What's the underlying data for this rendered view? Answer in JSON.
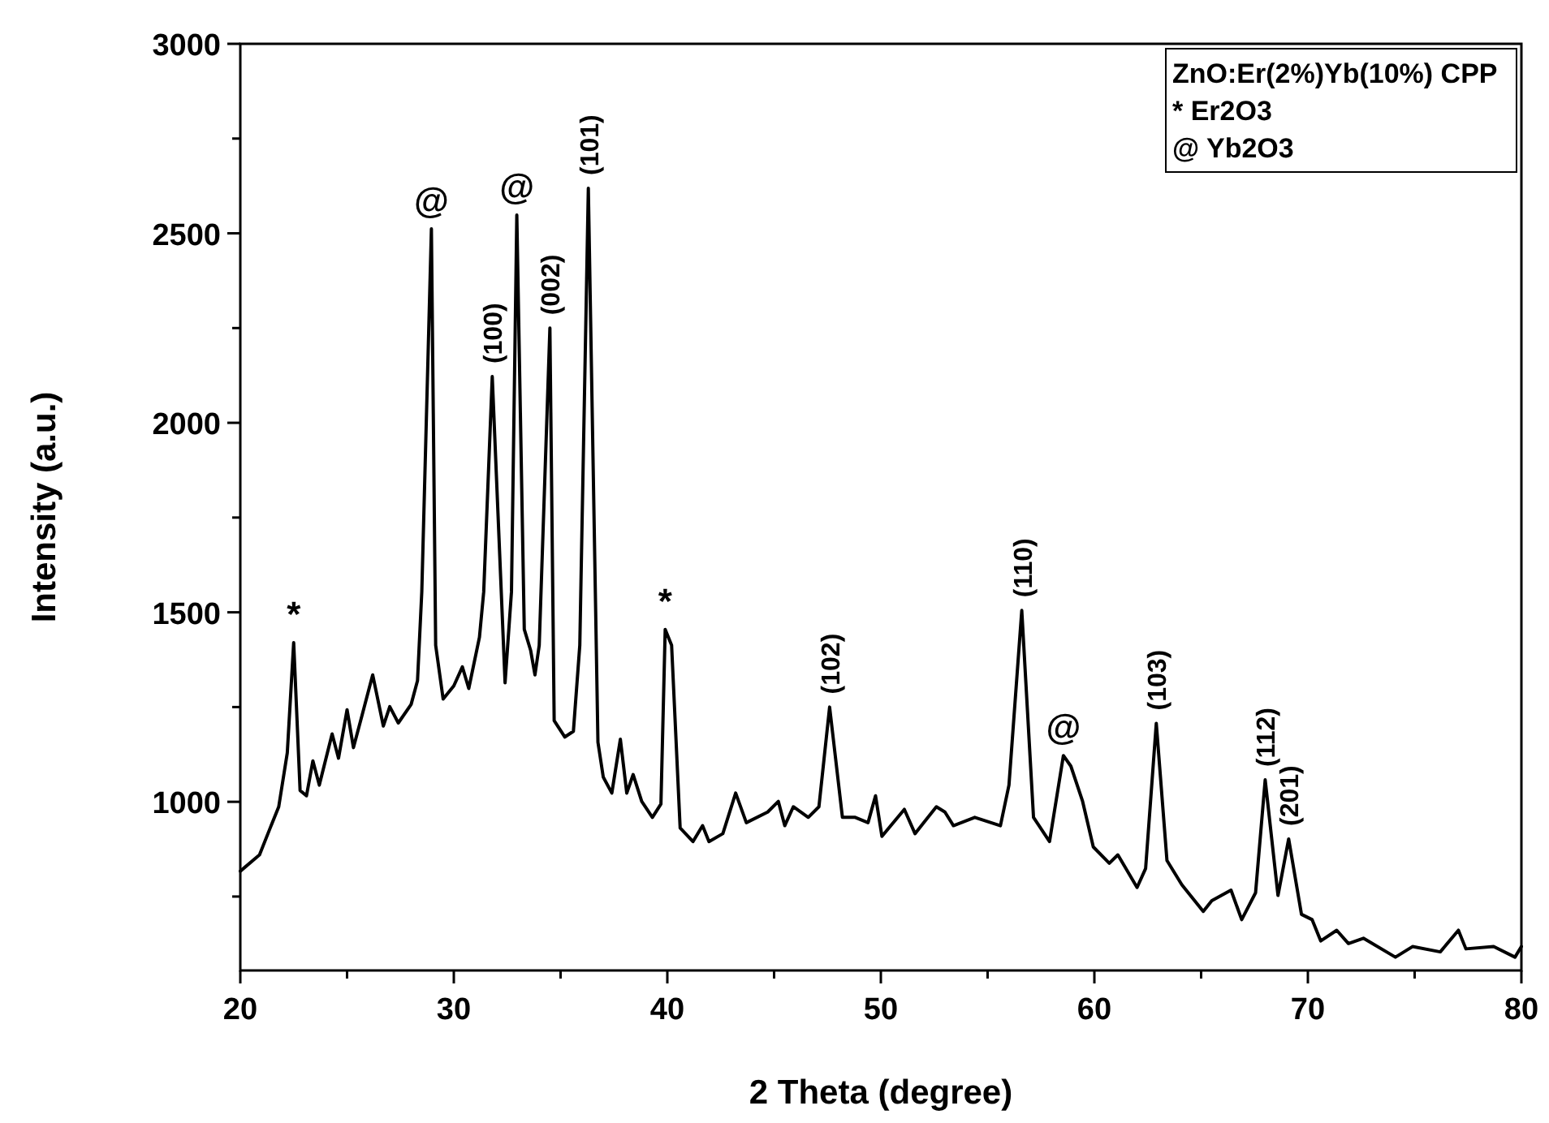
{
  "chart_data": {
    "type": "line",
    "xlabel": "2 Theta (degree)",
    "ylabel": "Intensity (a.u.)",
    "xlim": [
      20,
      80
    ],
    "ylim": [
      555,
      3000
    ],
    "xticks": [
      20,
      {
        "value": 25,
        "label": null
      },
      30,
      {
        "value": 35,
        "label": null
      },
      40,
      {
        "value": 45,
        "label": null
      },
      50,
      {
        "value": 55,
        "label": null
      },
      60,
      {
        "value": 65,
        "label": null
      },
      70,
      {
        "value": 75,
        "label": null
      },
      80
    ],
    "yticks": [
      {
        "value": 750,
        "label": null
      },
      1000,
      {
        "value": 1250,
        "label": null
      },
      1500,
      {
        "value": 1750,
        "label": null
      },
      2000,
      {
        "value": 2250,
        "label": null
      },
      2500,
      {
        "value": 2750,
        "label": null
      },
      3000
    ],
    "grid": false,
    "marker": "none",
    "line_style": "solid",
    "series": [
      {
        "color": "#000000",
        "x": [
          20.0,
          20.9,
          21.4,
          21.8,
          22.2,
          22.5,
          22.8,
          23.1,
          23.4,
          23.7,
          24.3,
          24.6,
          25.0,
          25.3,
          25.7,
          26.2,
          26.7,
          27.0,
          27.4,
          28.0,
          28.3,
          28.5,
          28.95,
          29.15,
          29.5,
          30.0,
          30.4,
          30.7,
          31.2,
          31.4,
          31.8,
          32.4,
          32.7,
          32.95,
          33.3,
          33.6,
          33.8,
          34.0,
          34.5,
          34.7,
          35.2,
          35.6,
          35.9,
          36.3,
          36.75,
          37.0,
          37.4,
          37.8,
          38.1,
          38.4,
          38.8,
          39.3,
          39.7,
          39.9,
          40.2,
          40.6,
          41.2,
          41.65,
          41.95,
          42.6,
          43.2,
          43.7,
          44.7,
          45.2,
          45.5,
          45.9,
          46.6,
          47.1,
          47.6,
          48.2,
          48.8,
          49.4,
          49.75,
          50.05,
          51.1,
          51.6,
          52.6,
          53.0,
          53.4,
          54.4,
          55.6,
          56.0,
          56.6,
          57.15,
          57.9,
          58.55,
          58.9,
          59.45,
          59.95,
          60.7,
          61.1,
          62.0,
          62.4,
          62.9,
          63.4,
          64.1,
          65.1,
          65.5,
          66.4,
          66.9,
          67.55,
          68.0,
          68.6,
          69.1,
          69.7,
          70.2,
          70.6,
          71.35,
          71.9,
          72.6,
          74.1,
          74.9,
          76.2,
          77.05,
          77.4,
          78.7,
          79.7,
          80.0
        ],
        "values": [
          817,
          860,
          931,
          987,
          1129,
          1420,
          1030,
          1016,
          1108,
          1044,
          1179,
          1115,
          1243,
          1143,
          1228,
          1335,
          1200,
          1251,
          1208,
          1257,
          1320,
          1554,
          2512,
          1413,
          1271,
          1306,
          1356,
          1299,
          1434,
          1554,
          2122,
          1314,
          1554,
          2548,
          1455,
          1399,
          1335,
          1413,
          2250,
          1214,
          1171,
          1186,
          1413,
          2619,
          1157,
          1065,
          1023,
          1165,
          1023,
          1072,
          1001,
          959,
          994,
          1455,
          1413,
          931,
          895,
          937,
          895,
          916,
          1023,
          945,
          973,
          1001,
          937,
          987,
          959,
          987,
          1250,
          959,
          959,
          945,
          1016,
          909,
          980,
          916,
          987,
          973,
          937,
          959,
          937,
          1044,
          1505,
          959,
          895,
          1122,
          1094,
          1001,
          881,
          838,
          860,
          774,
          824,
          1207,
          845,
          781,
          711,
          739,
          767,
          689,
          760,
          1058,
          753,
          902,
          703,
          689,
          633,
          661,
          626,
          640,
          590,
          618,
          604,
          661,
          612,
          618,
          590,
          618
        ]
      }
    ],
    "annotations": [
      "ZnO:Er(2%)Yb(10%) CPP",
      "* Er2O3",
      "@ Yb2O3",
      {
        "text": "*",
        "x": 22.5,
        "y": 1420
      },
      {
        "text": "@",
        "x": 28.95,
        "y": 2512
      },
      {
        "text": "(100)",
        "x": 31.8,
        "y": 2122
      },
      {
        "text": "@",
        "x": 32.95,
        "y": 2548
      },
      {
        "text": "(002)",
        "x": 34.5,
        "y": 2250
      },
      {
        "text": "(101)",
        "x": 36.3,
        "y": 2619
      },
      {
        "text": "*",
        "x": 39.9,
        "y": 1455
      },
      {
        "text": "(102)",
        "x": 47.6,
        "y": 1250
      },
      {
        "text": "(110)",
        "x": 56.6,
        "y": 1505
      },
      {
        "text": "@",
        "x": 58.55,
        "y": 1122
      },
      {
        "text": "(103)",
        "x": 62.9,
        "y": 1207
      },
      {
        "text": "(112)",
        "x": 68.0,
        "y": 1058
      },
      {
        "text": "(201)",
        "x": 69.1,
        "y": 902
      }
    ]
  }
}
